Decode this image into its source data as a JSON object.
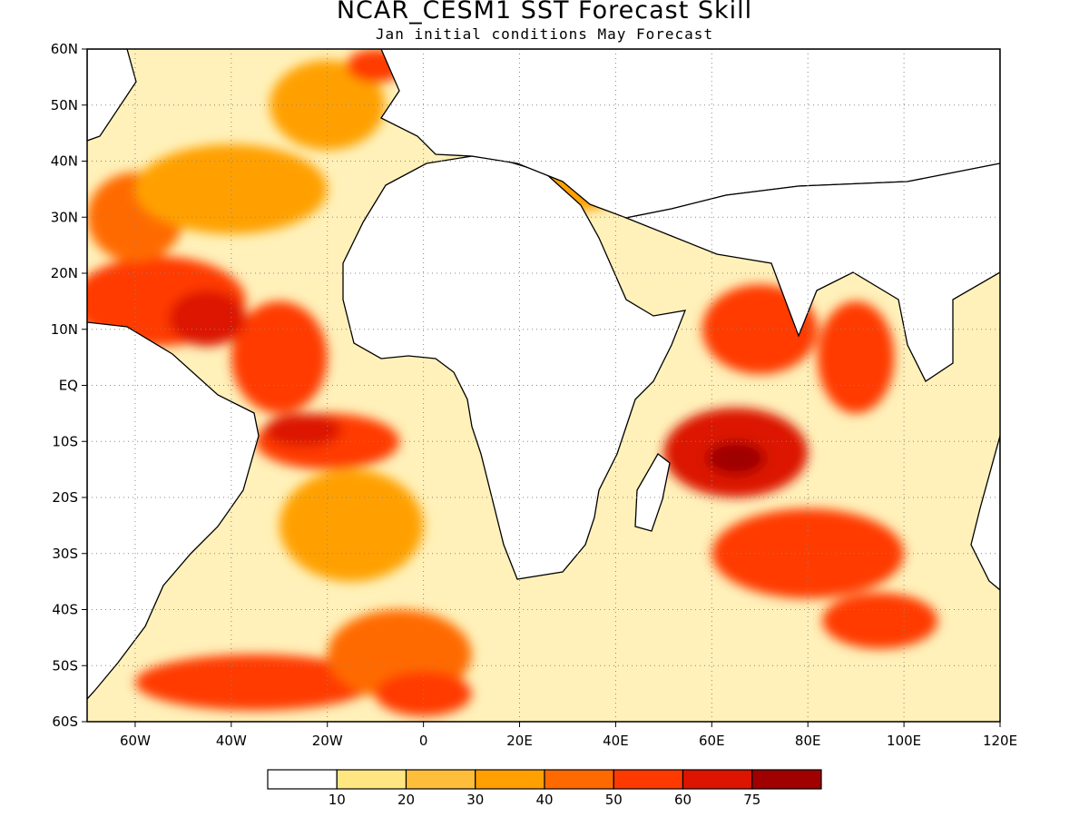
{
  "title": "NCAR_CESM1 SST Forecast Skill",
  "subtitle": "Jan initial conditions   May Forecast",
  "map": {
    "lon_range": [
      -70,
      120
    ],
    "lat_range": [
      -60,
      60
    ],
    "lat_labels": [
      "60N",
      "50N",
      "40N",
      "30N",
      "20N",
      "10N",
      "EQ",
      "10S",
      "20S",
      "30S",
      "40S",
      "50S",
      "60S"
    ],
    "lat_values": [
      60,
      50,
      40,
      30,
      20,
      10,
      0,
      -10,
      -20,
      -30,
      -40,
      -50,
      -60
    ],
    "lon_labels": [
      "60W",
      "40W",
      "20W",
      "0",
      "20E",
      "40E",
      "60E",
      "80E",
      "100E",
      "120E"
    ],
    "lon_values": [
      -60,
      -40,
      -20,
      0,
      20,
      40,
      60,
      80,
      100,
      120
    ],
    "grid": "dotted",
    "land_color": "#ffffff",
    "coast_color": "#000000"
  },
  "skill_regions": [
    {
      "lon": -55,
      "lat": 15,
      "rx": 18,
      "ry": 8,
      "level": 5
    },
    {
      "lon": -30,
      "lat": 5,
      "rx": 10,
      "ry": 10,
      "level": 5
    },
    {
      "lon": -45,
      "lat": 12,
      "rx": 8,
      "ry": 5,
      "level": 6
    },
    {
      "lon": -60,
      "lat": 30,
      "rx": 10,
      "ry": 8,
      "level": 4
    },
    {
      "lon": -40,
      "lat": 35,
      "rx": 20,
      "ry": 8,
      "level": 3
    },
    {
      "lon": -20,
      "lat": 50,
      "rx": 12,
      "ry": 8,
      "level": 3
    },
    {
      "lon": -10,
      "lat": 57,
      "rx": 6,
      "ry": 3,
      "level": 5
    },
    {
      "lon": -20,
      "lat": -10,
      "rx": 15,
      "ry": 5,
      "level": 5
    },
    {
      "lon": -25,
      "lat": -8,
      "rx": 8,
      "ry": 3,
      "level": 6
    },
    {
      "lon": -15,
      "lat": -25,
      "rx": 15,
      "ry": 10,
      "level": 3
    },
    {
      "lon": 65,
      "lat": -12,
      "rx": 15,
      "ry": 8,
      "level": 6
    },
    {
      "lon": 65,
      "lat": -13,
      "rx": 6,
      "ry": 3,
      "level": 7
    },
    {
      "lon": 70,
      "lat": 10,
      "rx": 12,
      "ry": 8,
      "level": 5
    },
    {
      "lon": 90,
      "lat": 5,
      "rx": 8,
      "ry": 10,
      "level": 5
    },
    {
      "lon": 80,
      "lat": -30,
      "rx": 20,
      "ry": 8,
      "level": 5
    },
    {
      "lon": 95,
      "lat": -42,
      "rx": 12,
      "ry": 5,
      "level": 5
    },
    {
      "lon": -35,
      "lat": -53,
      "rx": 25,
      "ry": 5,
      "level": 5
    },
    {
      "lon": -5,
      "lat": -48,
      "rx": 15,
      "ry": 8,
      "level": 4
    },
    {
      "lon": 0,
      "lat": -55,
      "rx": 10,
      "ry": 4,
      "level": 5
    },
    {
      "lon": 30,
      "lat": 35,
      "rx": 12,
      "ry": 4,
      "level": 3
    }
  ],
  "colorbar": {
    "colors": [
      "#ffffff",
      "#ffe680",
      "#ffbe3a",
      "#ffa000",
      "#ff6a00",
      "#ff3a00",
      "#dc1400",
      "#a00000"
    ],
    "tick_labels": [
      "10",
      "20",
      "30",
      "40",
      "50",
      "60",
      "75"
    ]
  }
}
